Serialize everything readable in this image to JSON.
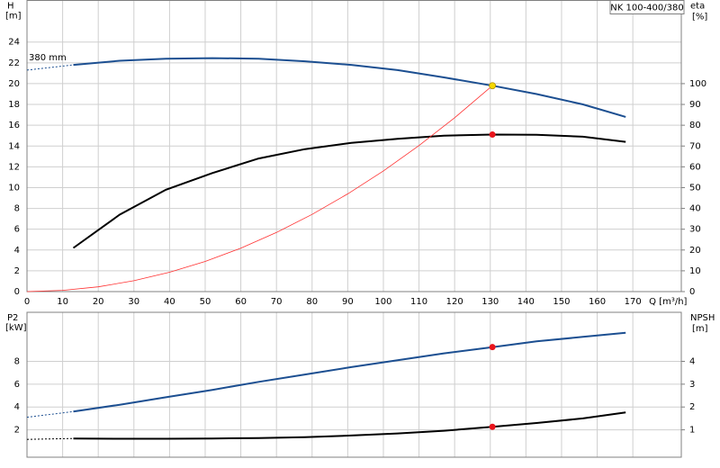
{
  "chart_data": [
    {
      "type": "line",
      "title": "NK 100-400/380",
      "y_label": "H",
      "y_unit": "[m]",
      "y2_label": "eta",
      "y2_unit": "[%]",
      "x_label": "Q [m³/h]",
      "xlim": [
        0,
        183.6
      ],
      "ylim": [
        0,
        28
      ],
      "y2lim": [
        0,
        140
      ],
      "xticks": [
        0,
        10,
        20,
        30,
        40,
        50,
        60,
        70,
        80,
        90,
        100,
        110,
        120,
        130,
        140,
        150,
        160,
        170
      ],
      "yticks": [
        0,
        2,
        4,
        6,
        8,
        10,
        12,
        14,
        16,
        18,
        20,
        22,
        24
      ],
      "y2ticks": [
        0,
        10,
        20,
        30,
        40,
        50,
        60,
        70,
        80,
        90,
        100
      ],
      "grid": true,
      "series": [
        {
          "name": "380 mm",
          "color": "#1c4f91",
          "dashed_start": true,
          "x": [
            0,
            13,
            26,
            39,
            52,
            65,
            78,
            91,
            104,
            117,
            130.6,
            143,
            156,
            168
          ],
          "values": [
            21.3,
            21.8,
            22.2,
            22.4,
            22.45,
            22.4,
            22.15,
            21.8,
            21.3,
            20.6,
            19.8,
            19.0,
            18.0,
            16.8
          ]
        },
        {
          "color": "#000000",
          "axis": "y2",
          "x": [
            13,
            26,
            39,
            52,
            65,
            78,
            91,
            104,
            117,
            130.6,
            143,
            156,
            168
          ],
          "values": [
            21,
            37,
            49,
            57,
            64,
            68.5,
            71.5,
            73.5,
            75,
            75.5,
            75.4,
            74.5,
            72
          ]
        },
        {
          "color": "#ff3030",
          "thin": true,
          "x": [
            0,
            10,
            20,
            30,
            40,
            50,
            60,
            70,
            80,
            90,
            100,
            110,
            120,
            130.6
          ],
          "values": [
            0,
            0.12,
            0.46,
            1.05,
            1.86,
            2.9,
            4.18,
            5.69,
            7.43,
            9.4,
            11.61,
            14.05,
            16.72,
            19.8
          ]
        }
      ],
      "points": [
        {
          "x": 130.6,
          "y": 19.8,
          "color": "#f5d800"
        },
        {
          "x": 130.6,
          "y": 75.5,
          "axis": "y2",
          "color": "#e8141c"
        }
      ]
    },
    {
      "type": "line",
      "y_label": "P2",
      "y_unit": "[kW]",
      "y2_label": "NPSH",
      "y2_unit": "[m]",
      "xlim": [
        0,
        183.6
      ],
      "ylim": [
        -0.4,
        12.3
      ],
      "y2lim": [
        -0.2,
        6.15
      ],
      "yticks": [
        2,
        4,
        6,
        8
      ],
      "y2ticks": [
        1,
        2,
        3,
        4
      ],
      "grid": true,
      "series": [
        {
          "color": "#1c4f91",
          "dashed_start": true,
          "x": [
            0,
            13,
            26,
            39,
            52,
            65,
            78,
            91,
            104,
            117,
            130.6,
            143,
            156,
            168
          ],
          "values": [
            3.1,
            3.6,
            4.2,
            4.85,
            5.5,
            6.2,
            6.85,
            7.5,
            8.1,
            8.7,
            9.25,
            9.75,
            10.15,
            10.5
          ]
        },
        {
          "color": "#000000",
          "axis": "y2",
          "dashed_start": true,
          "x": [
            0,
            13,
            26,
            39,
            52,
            65,
            78,
            91,
            104,
            117,
            130.6,
            143,
            156,
            168
          ],
          "values": [
            0.58,
            0.62,
            0.61,
            0.61,
            0.62,
            0.64,
            0.68,
            0.75,
            0.84,
            0.96,
            1.13,
            1.3,
            1.5,
            1.76
          ]
        }
      ],
      "points": [
        {
          "x": 130.6,
          "y": 9.25,
          "color": "#e8141c"
        },
        {
          "x": 130.6,
          "y": 1.13,
          "axis": "y2",
          "color": "#e8141c"
        }
      ]
    }
  ]
}
